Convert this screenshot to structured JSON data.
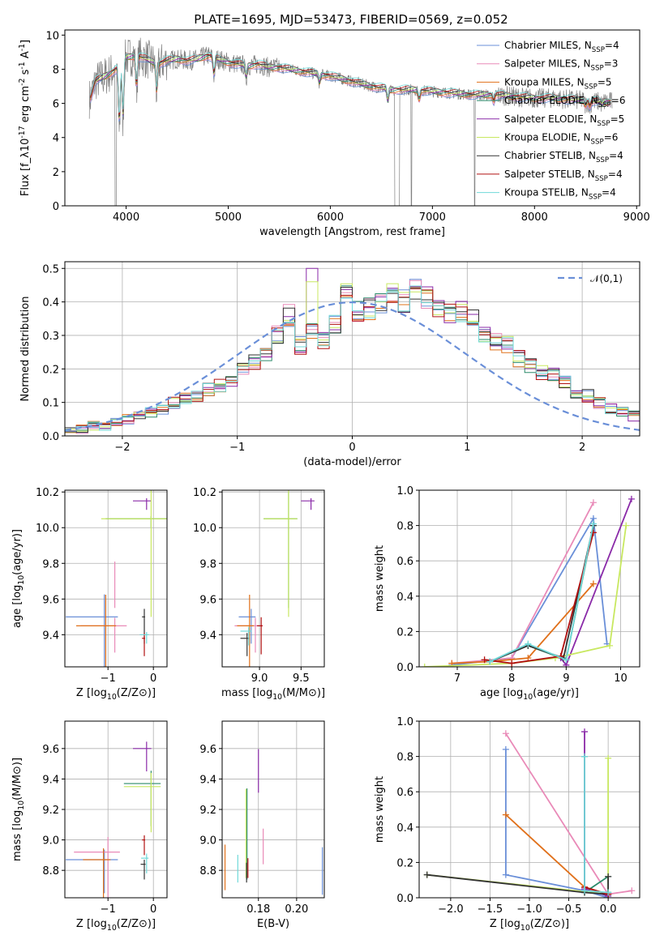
{
  "figure": {
    "title": "PLATE=1695, MJD=53473, FIBERID=0569, z=0.052"
  },
  "chart_data": [
    {
      "id": "spectrum",
      "type": "line",
      "xlabel": "wavelength [Angstrom, rest frame]",
      "ylabel": "Flux [f_λ10^-17 erg cm^-2 s^-1 A^-1]",
      "xlim": [
        3400,
        9030
      ],
      "ylim": [
        0,
        10.3
      ],
      "xticks": [
        4000,
        5000,
        6000,
        7000,
        8000,
        9000
      ],
      "yticks": [
        0,
        2,
        4,
        6,
        8,
        10
      ],
      "grid": false,
      "legend_position": "top-right",
      "data_color": "#808080",
      "models": [
        {
          "name": "Chabrier MILES, N_SSP=4",
          "color": "#6a8fd8"
        },
        {
          "name": "Salpeter MILES, N_SSP=3",
          "color": "#e98ab8"
        },
        {
          "name": "Kroupa MILES, N_SSP=5",
          "color": "#e0701a"
        },
        {
          "name": "Chabrier ELODIE, N_SSP=6",
          "color": "#2a8a6a"
        },
        {
          "name": "Salpeter ELODIE, N_SSP=5",
          "color": "#8a2aa8"
        },
        {
          "name": "Kroupa ELODIE, N_SSP=6",
          "color": "#c8e860"
        },
        {
          "name": "Chabrier STELIB, N_SSP=4",
          "color": "#333333"
        },
        {
          "name": "Salpeter STELIB, N_SSP=4",
          "color": "#b01010"
        },
        {
          "name": "Kroupa STELIB, N_SSP=4",
          "color": "#70d8d8"
        }
      ],
      "continuum": [
        [
          3650,
          6.3
        ],
        [
          3700,
          7.3
        ],
        [
          3800,
          7.6
        ],
        [
          3900,
          8.0
        ],
        [
          4000,
          8.7
        ],
        [
          4100,
          8.8
        ],
        [
          4200,
          8.6
        ],
        [
          4300,
          8.3
        ],
        [
          4400,
          8.5
        ],
        [
          4500,
          8.6
        ],
        [
          4600,
          8.5
        ],
        [
          4700,
          8.6
        ],
        [
          4800,
          8.8
        ],
        [
          4900,
          8.6
        ],
        [
          5000,
          8.4
        ],
        [
          5100,
          8.3
        ],
        [
          5200,
          8.2
        ],
        [
          5300,
          8.3
        ],
        [
          5400,
          8.1
        ],
        [
          5500,
          8.1
        ],
        [
          5600,
          8.0
        ],
        [
          5800,
          7.8
        ],
        [
          6000,
          7.6
        ],
        [
          6200,
          7.3
        ],
        [
          6400,
          7.0
        ],
        [
          6500,
          6.9
        ],
        [
          6600,
          6.8
        ],
        [
          6800,
          6.8
        ],
        [
          7000,
          6.7
        ],
        [
          7200,
          6.6
        ],
        [
          7400,
          6.5
        ],
        [
          7600,
          6.5
        ],
        [
          7800,
          6.4
        ],
        [
          8000,
          6.3
        ],
        [
          8200,
          6.3
        ],
        [
          8400,
          6.2
        ],
        [
          8600,
          6.1
        ],
        [
          8750,
          6.1
        ]
      ],
      "absorption_features": [
        [
          3934,
          4.5
        ],
        [
          3969,
          5.0
        ],
        [
          4102,
          6.9
        ],
        [
          4300,
          6.6
        ],
        [
          4861,
          7.6
        ],
        [
          5175,
          7.5
        ],
        [
          5893,
          7.2
        ],
        [
          6563,
          6.1
        ],
        [
          6870,
          6.2
        ],
        [
          7600,
          6.1
        ],
        [
          8500,
          5.9
        ],
        [
          8542,
          5.8
        ],
        [
          8662,
          5.9
        ]
      ]
    },
    {
      "id": "residuals",
      "type": "step",
      "xlabel": "(data-model)/error",
      "ylabel": "Normed distribution",
      "xlim": [
        -2.5,
        2.5
      ],
      "ylim": [
        0,
        0.52
      ],
      "xticks": [
        -2,
        -1,
        0,
        1,
        2
      ],
      "yticks": [
        0.0,
        0.1,
        0.2,
        0.3,
        0.4,
        0.5
      ],
      "grid": true,
      "legend_position": "top-right",
      "reference": {
        "name": "𝒩(0,1)",
        "color": "#6a8fd8",
        "style": "dashed"
      },
      "bin_edges_start": -2.5,
      "bin_width": 0.1,
      "histogram": [
        0.02,
        0.02,
        0.03,
        0.03,
        0.04,
        0.05,
        0.06,
        0.07,
        0.08,
        0.1,
        0.11,
        0.12,
        0.14,
        0.15,
        0.17,
        0.2,
        0.22,
        0.25,
        0.3,
        0.36,
        0.27,
        0.31,
        0.29,
        0.33,
        0.42,
        0.37,
        0.38,
        0.4,
        0.42,
        0.4,
        0.43,
        0.41,
        0.38,
        0.36,
        0.37,
        0.35,
        0.3,
        0.28,
        0.27,
        0.23,
        0.21,
        0.19,
        0.18,
        0.16,
        0.13,
        0.12,
        0.1,
        0.08,
        0.07,
        0.06,
        0.05,
        0.04,
        0.04,
        0.03,
        0.03,
        0.03
      ]
    },
    {
      "id": "age-vs-Z",
      "type": "errorbar",
      "xlabel": "Z [log10(Z/Z⊙)]",
      "ylabel": "age  [log10(age/yr)]",
      "xlim": [
        -1.95,
        0.3
      ],
      "ylim": [
        9.22,
        10.21
      ],
      "xticks": [
        -1,
        0
      ],
      "yticks": [
        9.4,
        9.6,
        9.8,
        10.0,
        10.2
      ],
      "grid": true,
      "points": [
        {
          "model": 0,
          "x": -1.08,
          "y": 9.5,
          "xerr": 0.85,
          "yerr": 0.42
        },
        {
          "model": 1,
          "x": -0.85,
          "y": 9.45,
          "xerr": 0.75,
          "yerr": 0.15
        },
        {
          "model": 1,
          "x": -0.85,
          "y": 9.75,
          "xerr": 0.0,
          "yerr": 0.2
        },
        {
          "model": 2,
          "x": -1.05,
          "y": 9.45,
          "xerr": 0.65,
          "yerr": 0.58
        },
        {
          "model": 3,
          "x": -0.05,
          "y": 10.05,
          "xerr": 1.0,
          "yerr": 0.05
        },
        {
          "model": 4,
          "x": -0.15,
          "y": 10.15,
          "xerr": 0.3,
          "yerr": 0.05
        },
        {
          "model": 5,
          "x": -0.05,
          "y": 10.05,
          "xerr": 1.1,
          "yerr": 0.55
        },
        {
          "model": 6,
          "x": -0.2,
          "y": 9.5,
          "xerr": 0.05,
          "yerr": 0.15
        },
        {
          "model": 7,
          "x": -0.2,
          "y": 9.38,
          "xerr": 0.05,
          "yerr": 0.1
        },
        {
          "model": 8,
          "x": -0.15,
          "y": 9.4,
          "xerr": 0.15,
          "yerr": 0.05
        }
      ]
    },
    {
      "id": "age-vs-mass",
      "type": "errorbar",
      "xlabel": "mass [log10(M/M⊙)]",
      "ylabel": "",
      "xlim": [
        8.55,
        9.78
      ],
      "ylim": [
        9.22,
        10.21
      ],
      "xticks": [
        9.0,
        9.5
      ],
      "yticks": [
        9.4,
        9.6,
        9.8,
        10.0,
        10.2
      ],
      "grid": true,
      "points": [
        {
          "model": 0,
          "x": 8.9,
          "y": 9.5,
          "xerr": 0.15,
          "yerr": 0.15
        },
        {
          "model": 1,
          "x": 8.95,
          "y": 9.45,
          "xerr": 0.25,
          "yerr": 0.15
        },
        {
          "model": 2,
          "x": 8.88,
          "y": 9.45,
          "xerr": 0.15,
          "yerr": 0.58
        },
        {
          "model": 3,
          "x": 9.35,
          "y": 10.05,
          "xerr": 0.3,
          "yerr": 0.5
        },
        {
          "model": 4,
          "x": 9.62,
          "y": 10.15,
          "xerr": 0.12,
          "yerr": 0.05
        },
        {
          "model": 5,
          "x": 9.35,
          "y": 10.05,
          "xerr": 0.3,
          "yerr": 0.55
        },
        {
          "model": 6,
          "x": 8.85,
          "y": 9.38,
          "xerr": 0.08,
          "yerr": 0.1
        },
        {
          "model": 7,
          "x": 9.02,
          "y": 9.45,
          "xerr": 0.05,
          "yerr": 0.16
        },
        {
          "model": 8,
          "x": 8.87,
          "y": 9.42,
          "xerr": 0.1,
          "yerr": 0.08
        }
      ]
    },
    {
      "id": "massweight-vs-age",
      "type": "line",
      "xlabel": "age  [log10(age/yr)]",
      "ylabel": "mass weight",
      "xlim": [
        6.3,
        10.35
      ],
      "ylim": [
        0,
        1.0
      ],
      "xticks": [
        7,
        8,
        9,
        10
      ],
      "yticks": [
        0.0,
        0.2,
        0.4,
        0.6,
        0.8,
        1.0
      ],
      "grid": true,
      "series": [
        {
          "model": 0,
          "x": [
            6.9,
            8.0,
            9.5,
            9.75
          ],
          "y": [
            0.01,
            0.05,
            0.84,
            0.13
          ]
        },
        {
          "model": 1,
          "x": [
            6.9,
            8.0,
            9.5
          ],
          "y": [
            0.02,
            0.05,
            0.93
          ]
        },
        {
          "model": 2,
          "x": [
            6.9,
            7.6,
            8.3,
            9.5
          ],
          "y": [
            0.02,
            0.03,
            0.05,
            0.47
          ]
        },
        {
          "model": 3,
          "x": [
            7.6,
            8.3,
            9.0,
            9.5
          ],
          "y": [
            0.03,
            0.12,
            0.04,
            0.8
          ]
        },
        {
          "model": 4,
          "x": [
            8.9,
            9.0,
            10.2
          ],
          "y": [
            0.05,
            0.01,
            0.95
          ]
        },
        {
          "model": 5,
          "x": [
            6.4,
            8.0,
            8.8,
            9.8,
            10.1
          ],
          "y": [
            0.0,
            0.02,
            0.05,
            0.12,
            0.8
          ]
        },
        {
          "model": 6,
          "x": [
            7.6,
            8.3,
            8.95,
            9.5
          ],
          "y": [
            0.03,
            0.12,
            0.05,
            0.8
          ]
        },
        {
          "model": 7,
          "x": [
            7.5,
            8.0,
            8.9,
            9.5
          ],
          "y": [
            0.04,
            0.02,
            0.06,
            0.76
          ]
        },
        {
          "model": 8,
          "x": [
            7.6,
            8.3,
            9.0,
            9.5
          ],
          "y": [
            0.03,
            0.13,
            0.04,
            0.81
          ]
        }
      ]
    },
    {
      "id": "mass-vs-Z",
      "type": "errorbar",
      "xlabel": "Z [log10(Z/Z⊙)]",
      "ylabel": "mass [log10(M/M⊙)]",
      "xlim": [
        -1.95,
        0.3
      ],
      "ylim": [
        8.62,
        9.78
      ],
      "xticks": [
        -1,
        0
      ],
      "yticks": [
        8.8,
        9.0,
        9.2,
        9.4,
        9.6
      ],
      "grid": true,
      "points": [
        {
          "model": 0,
          "x": -1.08,
          "y": 8.87,
          "xerr": 0.85,
          "yerr": 0.22
        },
        {
          "model": 1,
          "x": -1.0,
          "y": 8.92,
          "xerr": 0.75,
          "yerr": 0.33
        },
        {
          "model": 2,
          "x": -1.1,
          "y": 8.87,
          "xerr": 0.45,
          "yerr": 0.25
        },
        {
          "model": 3,
          "x": -0.05,
          "y": 9.37,
          "xerr": 0.6,
          "yerr": 0.28
        },
        {
          "model": 4,
          "x": -0.15,
          "y": 9.6,
          "xerr": 0.3,
          "yerr": 0.15
        },
        {
          "model": 5,
          "x": -0.05,
          "y": 9.35,
          "xerr": 0.6,
          "yerr": 0.3
        },
        {
          "model": 6,
          "x": -0.2,
          "y": 8.84,
          "xerr": 0.08,
          "yerr": 0.1
        },
        {
          "model": 7,
          "x": -0.2,
          "y": 9.0,
          "xerr": 0.05,
          "yerr": 0.1
        },
        {
          "model": 8,
          "x": -0.15,
          "y": 8.88,
          "xerr": 0.12,
          "yerr": 0.1
        }
      ]
    },
    {
      "id": "mass-vs-ebv",
      "type": "errorbar",
      "xlabel": "E(B-V)",
      "ylabel": "",
      "xlim": [
        0.161,
        0.2145
      ],
      "ylim": [
        8.62,
        9.78
      ],
      "xticks": [
        0.18,
        0.2
      ],
      "yticks": [
        8.8,
        9.0,
        9.2,
        9.4,
        9.6
      ],
      "grid": true,
      "points": [
        {
          "model": 0,
          "x": 0.2135,
          "y": 8.88,
          "xerr": 0.0,
          "yerr": 0.24
        },
        {
          "model": 1,
          "x": 0.1825,
          "y": 9.02,
          "xerr": 0.0,
          "yerr": 0.18
        },
        {
          "model": 2,
          "x": 0.1625,
          "y": 8.9,
          "xerr": 0.0,
          "yerr": 0.23
        },
        {
          "model": 3,
          "x": 0.174,
          "y": 9.2,
          "xerr": 0.0,
          "yerr": 0.46
        },
        {
          "model": 4,
          "x": 0.18,
          "y": 9.53,
          "xerr": 0.0,
          "yerr": 0.22
        },
        {
          "model": 5,
          "x": 0.1735,
          "y": 9.2,
          "xerr": 0.0,
          "yerr": 0.45
        },
        {
          "model": 6,
          "x": 0.1738,
          "y": 8.82,
          "xerr": 0.0,
          "yerr": 0.1
        },
        {
          "model": 7,
          "x": 0.1745,
          "y": 8.85,
          "xerr": 0.0,
          "yerr": 0.1
        },
        {
          "model": 8,
          "x": 0.1692,
          "y": 8.86,
          "xerr": 0.0,
          "yerr": 0.14
        }
      ]
    },
    {
      "id": "massweight-vs-Z",
      "type": "line",
      "xlabel": "Z [log10(Z/Z⊙)]",
      "ylabel": "mass weight",
      "xlim": [
        -2.4,
        0.4
      ],
      "ylim": [
        0,
        1.0
      ],
      "xticks": [
        -2.0,
        -1.5,
        -1.0,
        -0.5,
        0.0
      ],
      "yticks": [
        0.0,
        0.2,
        0.4,
        0.6,
        0.8,
        1.0
      ],
      "grid": true,
      "series": [
        {
          "model": 0,
          "x": [
            -1.3,
            -1.3,
            -0.3,
            0.0
          ],
          "y": [
            0.84,
            0.13,
            0.04,
            0.0
          ]
        },
        {
          "model": 1,
          "x": [
            -1.3,
            0.0,
            0.3
          ],
          "y": [
            0.93,
            0.02,
            0.04
          ]
        },
        {
          "model": 2,
          "x": [
            -1.3,
            -0.3,
            0.0
          ],
          "y": [
            0.47,
            0.06,
            0.02
          ]
        },
        {
          "model": 3,
          "x": [
            -0.3,
            -0.3,
            0.0,
            0.0
          ],
          "y": [
            0.8,
            0.03,
            0.12,
            0.03
          ]
        },
        {
          "model": 4,
          "x": [
            -0.3,
            -0.3,
            0.0
          ],
          "y": [
            0.94,
            0.05,
            0.01
          ]
        },
        {
          "model": 5,
          "x": [
            -2.3,
            0.0,
            0.0
          ],
          "y": [
            0.13,
            0.02,
            0.79
          ]
        },
        {
          "model": 6,
          "x": [
            -2.3,
            -0.3,
            0.0,
            0.0
          ],
          "y": [
            0.13,
            0.03,
            0.02,
            0.12
          ]
        },
        {
          "model": 7,
          "x": [
            -0.3,
            0.0
          ],
          "y": [
            0.06,
            0.02
          ]
        },
        {
          "model": 8,
          "x": [
            -0.3,
            -0.3,
            0.0
          ],
          "y": [
            0.8,
            0.04,
            0.03
          ]
        }
      ]
    }
  ]
}
